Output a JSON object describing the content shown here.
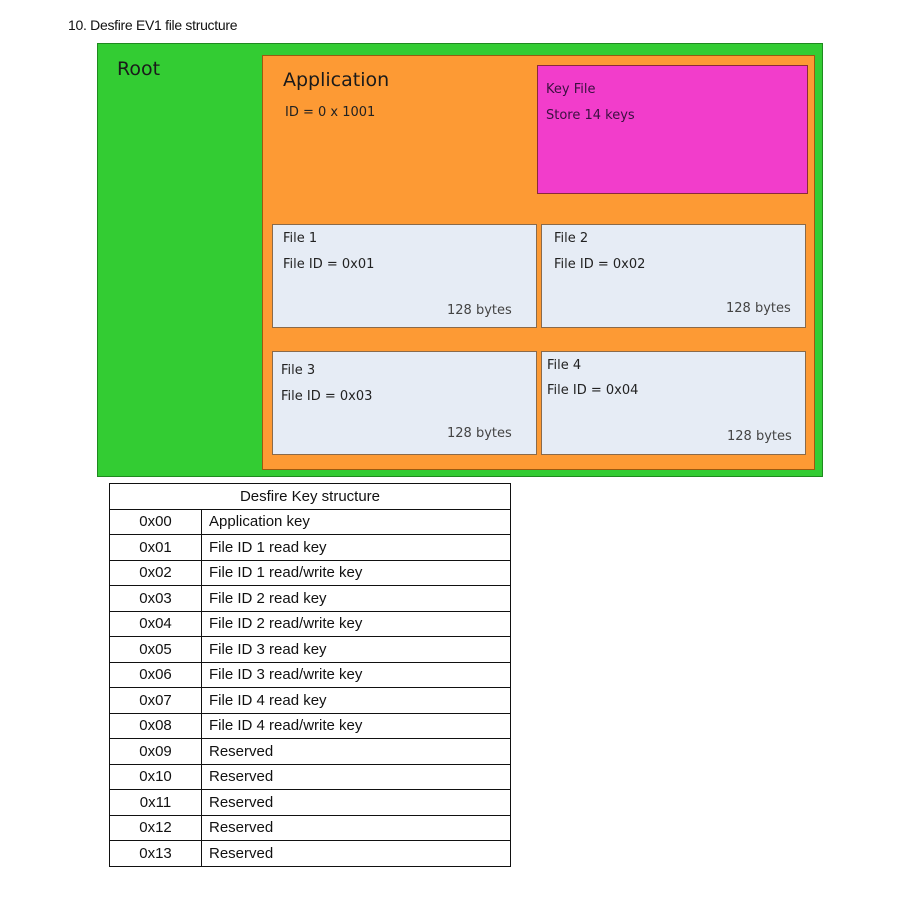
{
  "title": "10. Desfire EV1 file structure",
  "diagram": {
    "root": {
      "label": "Root",
      "color": "#33cc33"
    },
    "application": {
      "label": "Application",
      "id": "ID = 0 x 1001",
      "color": "#fd9a34"
    },
    "key_file": {
      "label": "Key File",
      "desc": "Store 14 keys",
      "color": "#f23dcb"
    },
    "files": [
      {
        "label": "File 1",
        "id": "File ID = 0x01",
        "size": "128 bytes"
      },
      {
        "label": "File 2",
        "id": "File ID = 0x02",
        "size": "128 bytes"
      },
      {
        "label": "File 3",
        "id": "File ID = 0x03",
        "size": "128 bytes"
      },
      {
        "label": "File 4",
        "id": "File ID = 0x04",
        "size": "128 bytes"
      }
    ]
  },
  "table": {
    "header": "Desfire Key structure",
    "rows": [
      [
        "0x00",
        "Application key"
      ],
      [
        "0x01",
        "File ID 1 read key"
      ],
      [
        "0x02",
        "File ID 1 read/write key"
      ],
      [
        "0x03",
        "File ID 2 read key"
      ],
      [
        "0x04",
        "File ID 2 read/write key"
      ],
      [
        "0x05",
        "File ID 3 read key"
      ],
      [
        "0x06",
        "File ID 3 read/write key"
      ],
      [
        "0x07",
        "File ID 4 read key"
      ],
      [
        "0x08",
        "File ID 4 read/write key"
      ],
      [
        "0x09",
        "Reserved"
      ],
      [
        "0x10",
        "Reserved"
      ],
      [
        "0x11",
        "Reserved"
      ],
      [
        "0x12",
        "Reserved"
      ],
      [
        "0x13",
        "Reserved"
      ]
    ]
  }
}
